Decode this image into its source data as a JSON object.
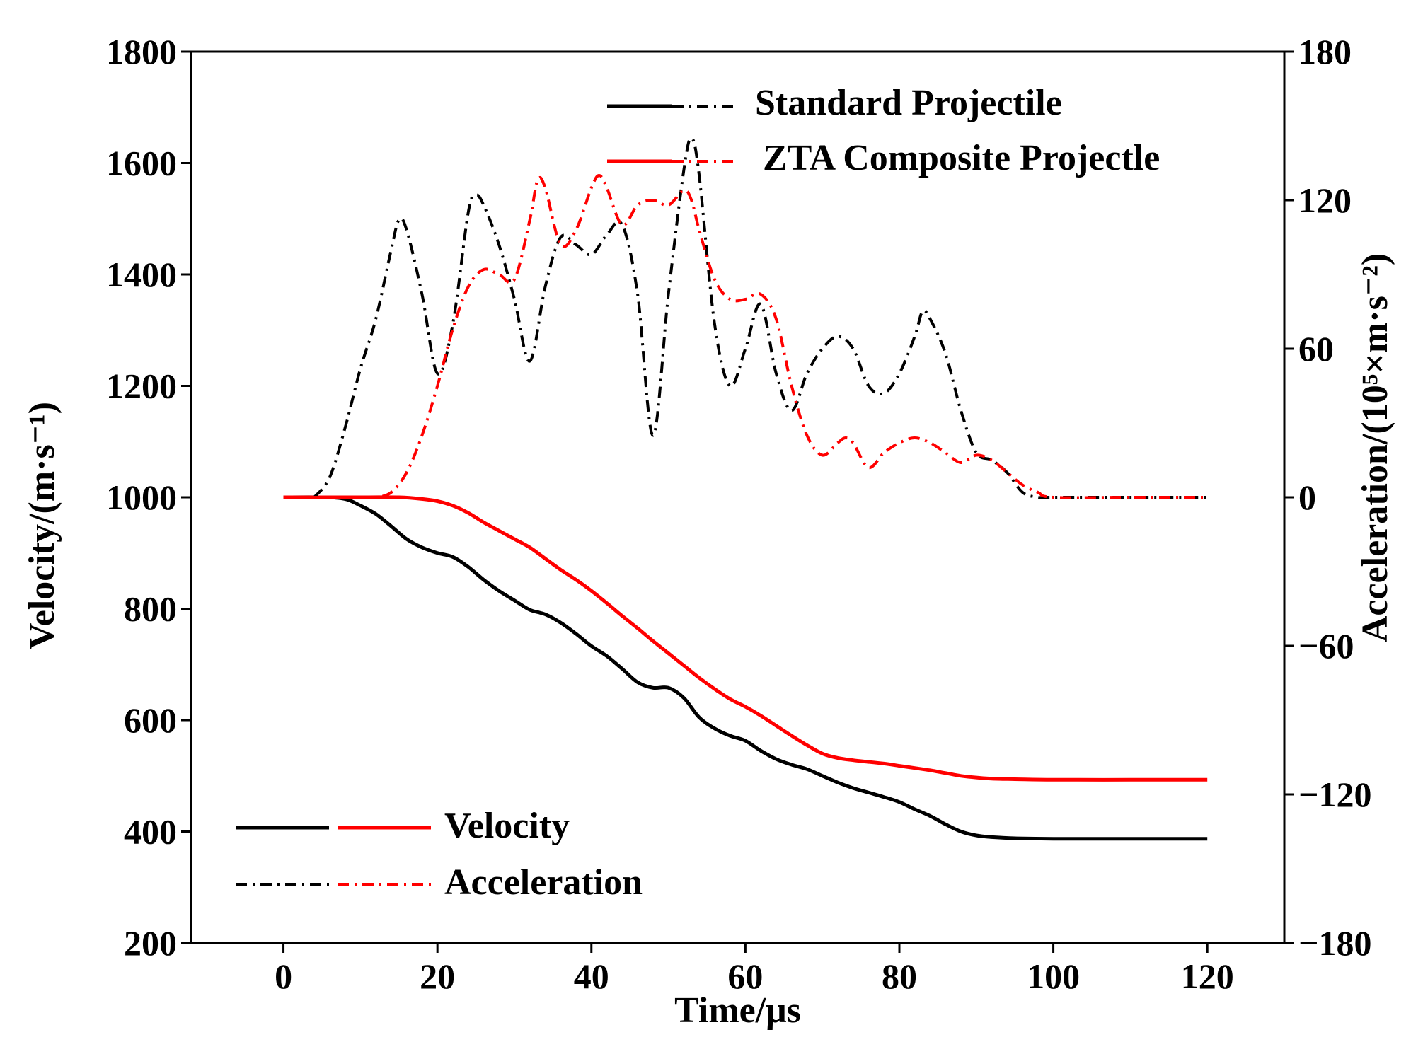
{
  "chart_data": {
    "type": "line",
    "title": "",
    "xlabel": "Time/μs",
    "ylabel_left": "Velocity/(m·s⁻¹)",
    "ylabel_right": "Acceleration/(10⁵×m·s⁻²)",
    "xlim": [
      -12,
      130
    ],
    "ylim_left": [
      200,
      1800
    ],
    "ylim_right": [
      -180,
      180
    ],
    "x_ticks": [
      0,
      20,
      40,
      60,
      80,
      100,
      120
    ],
    "y_ticks_left": [
      200,
      400,
      600,
      800,
      1000,
      1200,
      1400,
      1600,
      1800
    ],
    "y_ticks_right": [
      -180,
      -120,
      -60,
      0,
      60,
      120,
      180
    ],
    "y_tick_labels_right": [
      "−180",
      "−120",
      "−60",
      "0",
      "60",
      "120",
      "180"
    ],
    "legend_projectile": {
      "position": "top-right",
      "entries": [
        {
          "label": "Standard Projectile",
          "color": "#000000"
        },
        {
          "label": "ZTA Composite Projectle",
          "color": "#ff0000"
        }
      ]
    },
    "legend_quantity": {
      "position": "bottom-left",
      "entries": [
        {
          "label": "Velocity",
          "style": "solid"
        },
        {
          "label": "Acceleration",
          "style": "dash-dot"
        }
      ]
    },
    "series": [
      {
        "name": "Standard Projectile Velocity",
        "axis": "left",
        "color": "#000000",
        "style": "solid",
        "x": [
          0,
          5,
          8,
          10,
          12,
          14,
          16,
          18,
          20,
          22,
          24,
          26,
          28,
          30,
          32,
          34,
          36,
          38,
          40,
          42,
          44,
          46,
          48,
          50,
          52,
          54,
          56,
          58,
          60,
          62,
          64,
          66,
          68,
          70,
          72,
          74,
          76,
          78,
          80,
          82,
          84,
          86,
          88,
          90,
          92,
          95,
          100,
          110,
          120
        ],
        "y": [
          1000,
          1000,
          997,
          985,
          970,
          948,
          925,
          910,
          900,
          893,
          875,
          852,
          832,
          815,
          798,
          790,
          775,
          755,
          733,
          715,
          692,
          668,
          658,
          658,
          640,
          605,
          585,
          572,
          563,
          545,
          530,
          520,
          512,
          500,
          488,
          478,
          470,
          462,
          453,
          440,
          428,
          413,
          400,
          393,
          390,
          388,
          387,
          387,
          387
        ]
      },
      {
        "name": "ZTA Composite Projectle Velocity",
        "axis": "left",
        "color": "#ff0000",
        "style": "solid",
        "x": [
          0,
          10,
          15,
          18,
          20,
          22,
          24,
          26,
          28,
          30,
          32,
          34,
          36,
          38,
          40,
          42,
          44,
          46,
          48,
          50,
          52,
          54,
          56,
          58,
          60,
          62,
          64,
          66,
          68,
          70,
          72,
          74,
          76,
          78,
          80,
          82,
          84,
          86,
          88,
          90,
          92,
          95,
          100,
          110,
          120
        ],
        "y": [
          1000,
          1000,
          1000,
          997,
          993,
          985,
          972,
          955,
          940,
          925,
          910,
          890,
          870,
          852,
          832,
          810,
          787,
          765,
          742,
          720,
          698,
          676,
          656,
          638,
          624,
          608,
          590,
          572,
          555,
          540,
          532,
          528,
          525,
          522,
          518,
          514,
          510,
          505,
          500,
          497,
          495,
          494,
          493,
          493,
          493
        ]
      },
      {
        "name": "Standard Projectile Acceleration",
        "axis": "right",
        "color": "#000000",
        "style": "dash-dot",
        "x": [
          4,
          6,
          8,
          10,
          12,
          14,
          15,
          16,
          18,
          20,
          22,
          24,
          25,
          26,
          28,
          30,
          32,
          34,
          36,
          38,
          40,
          42,
          44,
          46,
          48,
          50,
          52,
          53,
          54,
          56,
          58,
          60,
          62,
          64,
          66,
          68,
          70,
          72,
          74,
          76,
          78,
          80,
          82,
          83,
          84,
          86,
          88,
          90,
          92,
          94,
          96,
          98,
          100,
          110,
          120
        ],
        "y": [
          0,
          8,
          28,
          52,
          72,
          100,
          112,
          108,
          82,
          50,
          70,
          115,
          122,
          118,
          102,
          80,
          55,
          85,
          105,
          102,
          98,
          106,
          110,
          82,
          25,
          82,
          132,
          145,
          130,
          70,
          45,
          60,
          78,
          50,
          35,
          50,
          60,
          65,
          60,
          45,
          42,
          50,
          65,
          75,
          72,
          58,
          35,
          18,
          15,
          10,
          2,
          0,
          0,
          0,
          0
        ]
      },
      {
        "name": "ZTA Composite Projectle Acceleration",
        "axis": "right",
        "color": "#ff0000",
        "style": "dash-dot",
        "x": [
          0,
          10,
          12,
          14,
          16,
          18,
          20,
          22,
          24,
          26,
          28,
          30,
          32,
          33,
          34,
          36,
          38,
          40,
          41,
          42,
          44,
          46,
          48,
          50,
          52,
          53,
          54,
          56,
          58,
          60,
          62,
          64,
          66,
          68,
          70,
          72,
          73,
          74,
          76,
          78,
          80,
          82,
          84,
          86,
          88,
          90,
          92,
          94,
          96,
          98,
          100,
          110,
          120
        ],
        "y": [
          0,
          0,
          0,
          2,
          10,
          25,
          45,
          68,
          85,
          92,
          90,
          88,
          112,
          128,
          125,
          102,
          108,
          125,
          130,
          125,
          110,
          118,
          120,
          118,
          124,
          120,
          108,
          88,
          80,
          80,
          82,
          72,
          45,
          25,
          17,
          22,
          24,
          22,
          12,
          18,
          22,
          24,
          22,
          18,
          14,
          17,
          15,
          10,
          5,
          2,
          0,
          0,
          0
        ]
      }
    ]
  }
}
